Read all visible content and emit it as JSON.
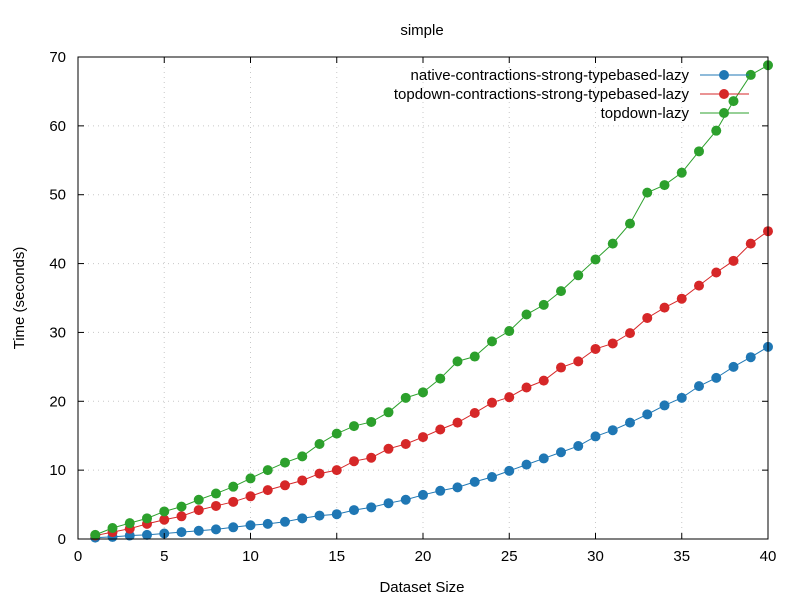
{
  "chart_data": {
    "type": "line",
    "title": "simple",
    "xlabel": "Dataset Size",
    "ylabel": "Time (seconds)",
    "xlim": [
      0,
      40
    ],
    "ylim": [
      0,
      70
    ],
    "x_ticks": [
      "0",
      "5",
      "10",
      "15",
      "20",
      "25",
      "30",
      "35",
      "40"
    ],
    "y_ticks": [
      "0",
      "10",
      "20",
      "30",
      "40",
      "50",
      "60",
      "70"
    ],
    "grid": true,
    "legend_position": "top-right",
    "x": [
      1,
      2,
      3,
      4,
      5,
      6,
      7,
      8,
      9,
      10,
      11,
      12,
      13,
      14,
      15,
      16,
      17,
      18,
      19,
      20,
      21,
      22,
      23,
      24,
      25,
      26,
      27,
      28,
      29,
      30,
      31,
      32,
      33,
      34,
      35,
      36,
      37,
      38,
      39,
      40
    ],
    "series": [
      {
        "name": "native-contractions-strong-typebased-lazy",
        "color": "#1f77b4",
        "values": [
          0.2,
          0.3,
          0.5,
          0.6,
          0.8,
          1.0,
          1.2,
          1.4,
          1.7,
          2.0,
          2.2,
          2.5,
          3.0,
          3.4,
          3.6,
          4.2,
          4.6,
          5.2,
          5.7,
          6.4,
          7.0,
          7.5,
          8.3,
          9.0,
          9.9,
          10.8,
          11.7,
          12.6,
          13.5,
          14.9,
          15.8,
          16.9,
          18.1,
          19.4,
          20.5,
          22.2,
          23.4,
          25.0,
          26.4,
          27.9
        ]
      },
      {
        "name": "topdown-contractions-strong-typebased-lazy",
        "color": "#d62728",
        "values": [
          0.5,
          1.0,
          1.5,
          2.2,
          2.8,
          3.3,
          4.2,
          4.8,
          5.4,
          6.2,
          7.1,
          7.8,
          8.5,
          9.5,
          10.0,
          11.3,
          11.8,
          13.1,
          13.8,
          14.8,
          15.9,
          16.9,
          18.3,
          19.8,
          20.6,
          22.0,
          23.0,
          24.9,
          25.8,
          27.6,
          28.4,
          29.9,
          32.1,
          33.6,
          34.9,
          36.8,
          38.7,
          40.4,
          42.9,
          44.7
        ]
      },
      {
        "name": "topdown-lazy",
        "color": "#2ca02c",
        "values": [
          0.6,
          1.6,
          2.3,
          3.0,
          4.0,
          4.7,
          5.7,
          6.6,
          7.6,
          8.8,
          10.0,
          11.1,
          12.0,
          13.8,
          15.3,
          16.4,
          17.0,
          18.4,
          20.5,
          21.3,
          23.3,
          25.8,
          26.5,
          28.7,
          30.2,
          32.6,
          34.0,
          36.0,
          38.3,
          40.6,
          42.9,
          45.8,
          50.3,
          51.4,
          53.2,
          56.3,
          59.3,
          63.6,
          67.4,
          68.8
        ]
      }
    ]
  }
}
